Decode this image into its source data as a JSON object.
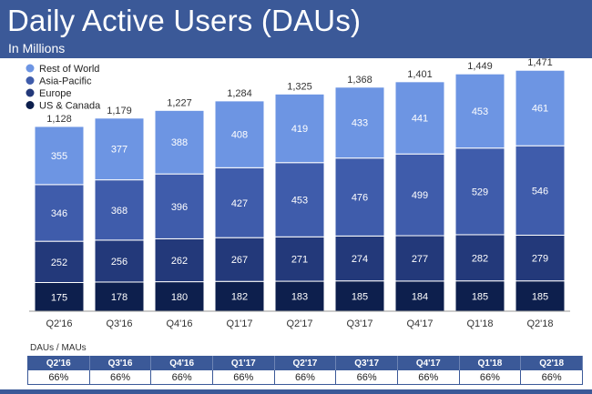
{
  "header": {
    "title": "Daily Active Users (DAUs)",
    "subtitle": "In Millions"
  },
  "chart_data": {
    "type": "bar",
    "stacked": true,
    "categories": [
      "Q2'16",
      "Q3'16",
      "Q4'16",
      "Q1'17",
      "Q2'17",
      "Q3'17",
      "Q4'17",
      "Q1'18",
      "Q2'18"
    ],
    "series": [
      {
        "name": "US & Canada",
        "color": "#0d1f4d",
        "values": [
          175,
          178,
          180,
          182,
          183,
          185,
          184,
          185,
          185
        ]
      },
      {
        "name": "Europe",
        "color": "#23397a",
        "values": [
          252,
          256,
          262,
          267,
          271,
          274,
          277,
          282,
          279
        ]
      },
      {
        "name": "Asia-Pacific",
        "color": "#3f5cab",
        "values": [
          346,
          368,
          396,
          427,
          453,
          476,
          499,
          529,
          546
        ]
      },
      {
        "name": "Rest of World",
        "color": "#6d95e3",
        "values": [
          355,
          377,
          388,
          408,
          419,
          433,
          441,
          453,
          461
        ]
      }
    ],
    "totals": [
      1128,
      1179,
      1227,
      1284,
      1325,
      1368,
      1401,
      1449,
      1471
    ],
    "totals_labels": [
      "1,128",
      "1,179",
      "1,227",
      "1,284",
      "1,325",
      "1,368",
      "1,401",
      "1,449",
      "1,471"
    ],
    "legend_position": "top-left",
    "grid": false
  },
  "table": {
    "label": "DAUs / MAUs",
    "headers": [
      "Q2'16",
      "Q3'16",
      "Q4'16",
      "Q1'17",
      "Q2'17",
      "Q3'17",
      "Q4'17",
      "Q1'18",
      "Q2'18"
    ],
    "values": [
      "66%",
      "66%",
      "66%",
      "66%",
      "66%",
      "66%",
      "66%",
      "66%",
      "66%"
    ]
  }
}
